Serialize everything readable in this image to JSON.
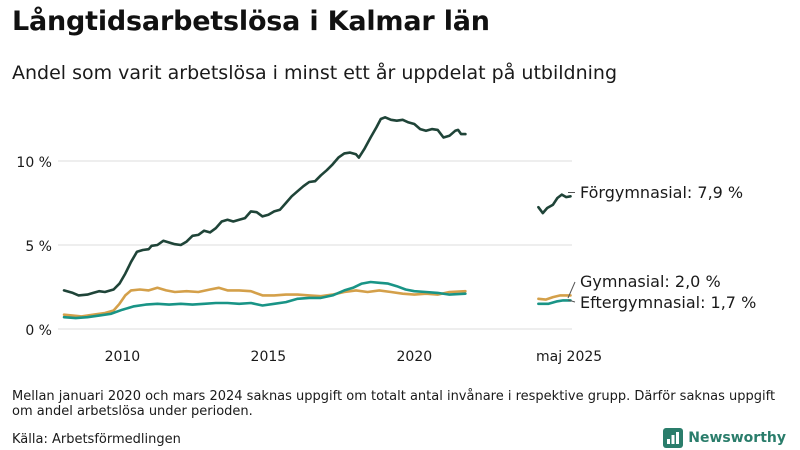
{
  "title": "Långtidsarbetslösa i Kalmar län",
  "subtitle": "Andel som varit arbetslösa i minst ett år uppdelat på utbildning",
  "note": "Mellan januari 2020 och mars 2024 saknas uppgift om totalt antal invånare i respektive grupp. Därför saknas uppgift om andel arbetslösa under perioden.",
  "source": "Källa: Arbetsförmedlingen",
  "brand": "Newsworthy",
  "colors": {
    "forgymnasial": "#1f4438",
    "gymnasial": "#d4a04a",
    "eftergymnasial": "#199486",
    "grid": "#dcdcdc",
    "text": "#1a1a1a"
  },
  "chart_data": {
    "type": "line",
    "ylabel": "",
    "ylim": [
      0,
      13
    ],
    "yticks": [
      {
        "value": 0,
        "label": "0 %"
      },
      {
        "value": 5,
        "label": "5 %"
      },
      {
        "value": 10,
        "label": "10 %"
      }
    ],
    "xticks": [
      {
        "value": 2010,
        "label": "2010"
      },
      {
        "value": 2015,
        "label": "2015"
      },
      {
        "value": 2020,
        "label": "2020"
      },
      {
        "value": 2025.3,
        "label": "maj 2025"
      }
    ],
    "series": [
      {
        "name": "Förgymnasial",
        "label": "Förgymnasial: 7,9 %",
        "color_key": "forgymnasial",
        "segments": [
          [
            [
              2008.0,
              2.3
            ],
            [
              2008.3,
              2.15
            ],
            [
              2008.5,
              2.0
            ],
            [
              2008.8,
              2.05
            ],
            [
              2009.0,
              2.15
            ],
            [
              2009.2,
              2.25
            ],
            [
              2009.4,
              2.2
            ],
            [
              2009.7,
              2.35
            ],
            [
              2009.9,
              2.7
            ],
            [
              2010.1,
              3.3
            ],
            [
              2010.3,
              4.0
            ],
            [
              2010.5,
              4.6
            ],
            [
              2010.7,
              4.7
            ],
            [
              2010.9,
              4.75
            ],
            [
              2011.0,
              4.95
            ],
            [
              2011.2,
              5.0
            ],
            [
              2011.4,
              5.25
            ],
            [
              2011.6,
              5.15
            ],
            [
              2011.8,
              5.05
            ],
            [
              2012.0,
              5.0
            ],
            [
              2012.2,
              5.2
            ],
            [
              2012.4,
              5.55
            ],
            [
              2012.6,
              5.6
            ],
            [
              2012.8,
              5.85
            ],
            [
              2013.0,
              5.75
            ],
            [
              2013.2,
              6.0
            ],
            [
              2013.4,
              6.4
            ],
            [
              2013.6,
              6.5
            ],
            [
              2013.8,
              6.4
            ],
            [
              2014.0,
              6.5
            ],
            [
              2014.2,
              6.6
            ],
            [
              2014.4,
              7.0
            ],
            [
              2014.6,
              6.95
            ],
            [
              2014.8,
              6.7
            ],
            [
              2015.0,
              6.8
            ],
            [
              2015.2,
              7.0
            ],
            [
              2015.4,
              7.1
            ],
            [
              2015.6,
              7.5
            ],
            [
              2015.8,
              7.9
            ],
            [
              2016.0,
              8.2
            ],
            [
              2016.2,
              8.5
            ],
            [
              2016.4,
              8.75
            ],
            [
              2016.6,
              8.8
            ],
            [
              2016.8,
              9.15
            ],
            [
              2017.0,
              9.45
            ],
            [
              2017.2,
              9.8
            ],
            [
              2017.4,
              10.2
            ],
            [
              2017.6,
              10.45
            ],
            [
              2017.8,
              10.5
            ],
            [
              2018.0,
              10.4
            ],
            [
              2018.1,
              10.2
            ],
            [
              2018.3,
              10.75
            ],
            [
              2018.5,
              11.4
            ],
            [
              2018.7,
              12.0
            ],
            [
              2018.85,
              12.5
            ],
            [
              2019.0,
              12.6
            ],
            [
              2019.2,
              12.45
            ],
            [
              2019.4,
              12.4
            ],
            [
              2019.6,
              12.45
            ],
            [
              2019.8,
              12.3
            ],
            [
              2020.0,
              12.2
            ],
            [
              2020.2,
              11.9
            ],
            [
              2020.4,
              11.8
            ],
            [
              2020.6,
              11.9
            ],
            [
              2020.8,
              11.85
            ],
            [
              2021.0,
              11.4
            ],
            [
              2021.2,
              11.5
            ],
            [
              2021.4,
              11.8
            ],
            [
              2021.5,
              11.85
            ],
            [
              2021.6,
              11.6
            ],
            [
              2021.75,
              11.6
            ]
          ],
          [
            [
              2024.25,
              7.25
            ],
            [
              2024.4,
              6.9
            ],
            [
              2024.55,
              7.2
            ],
            [
              2024.75,
              7.4
            ],
            [
              2024.9,
              7.8
            ],
            [
              2025.05,
              8.0
            ],
            [
              2025.2,
              7.85
            ],
            [
              2025.35,
              7.9
            ]
          ]
        ]
      },
      {
        "name": "Gymnasial",
        "label": "Gymnasial: 2,0 %",
        "color_key": "gymnasial",
        "segments": [
          [
            [
              2008.0,
              0.85
            ],
            [
              2008.3,
              0.8
            ],
            [
              2008.6,
              0.75
            ],
            [
              2009.0,
              0.85
            ],
            [
              2009.4,
              0.95
            ],
            [
              2009.7,
              1.1
            ],
            [
              2009.9,
              1.5
            ],
            [
              2010.1,
              2.0
            ],
            [
              2010.3,
              2.3
            ],
            [
              2010.6,
              2.35
            ],
            [
              2010.9,
              2.3
            ],
            [
              2011.2,
              2.45
            ],
            [
              2011.5,
              2.3
            ],
            [
              2011.8,
              2.2
            ],
            [
              2012.2,
              2.25
            ],
            [
              2012.6,
              2.2
            ],
            [
              2013.0,
              2.35
            ],
            [
              2013.3,
              2.45
            ],
            [
              2013.6,
              2.3
            ],
            [
              2014.0,
              2.3
            ],
            [
              2014.4,
              2.25
            ],
            [
              2014.8,
              2.0
            ],
            [
              2015.2,
              2.0
            ],
            [
              2015.6,
              2.05
            ],
            [
              2016.0,
              2.05
            ],
            [
              2016.4,
              2.0
            ],
            [
              2016.8,
              1.95
            ],
            [
              2017.2,
              2.05
            ],
            [
              2017.6,
              2.2
            ],
            [
              2018.0,
              2.3
            ],
            [
              2018.4,
              2.2
            ],
            [
              2018.8,
              2.3
            ],
            [
              2019.2,
              2.2
            ],
            [
              2019.6,
              2.1
            ],
            [
              2020.0,
              2.05
            ],
            [
              2020.4,
              2.1
            ],
            [
              2020.8,
              2.05
            ],
            [
              2021.2,
              2.2
            ],
            [
              2021.75,
              2.25
            ]
          ],
          [
            [
              2024.25,
              1.8
            ],
            [
              2024.5,
              1.75
            ],
            [
              2024.75,
              1.9
            ],
            [
              2025.0,
              2.0
            ],
            [
              2025.35,
              2.0
            ]
          ]
        ]
      },
      {
        "name": "Eftergymnasial",
        "label": "Eftergymnasial: 1,7 %",
        "color_key": "eftergymnasial",
        "segments": [
          [
            [
              2008.0,
              0.7
            ],
            [
              2008.4,
              0.65
            ],
            [
              2008.8,
              0.7
            ],
            [
              2009.2,
              0.8
            ],
            [
              2009.6,
              0.9
            ],
            [
              2010.0,
              1.15
            ],
            [
              2010.4,
              1.35
            ],
            [
              2010.8,
              1.45
            ],
            [
              2011.2,
              1.5
            ],
            [
              2011.6,
              1.45
            ],
            [
              2012.0,
              1.5
            ],
            [
              2012.4,
              1.45
            ],
            [
              2012.8,
              1.5
            ],
            [
              2013.2,
              1.55
            ],
            [
              2013.6,
              1.55
            ],
            [
              2014.0,
              1.5
            ],
            [
              2014.4,
              1.55
            ],
            [
              2014.8,
              1.4
            ],
            [
              2015.2,
              1.5
            ],
            [
              2015.6,
              1.6
            ],
            [
              2016.0,
              1.8
            ],
            [
              2016.4,
              1.85
            ],
            [
              2016.8,
              1.85
            ],
            [
              2017.2,
              2.0
            ],
            [
              2017.6,
              2.3
            ],
            [
              2017.9,
              2.45
            ],
            [
              2018.2,
              2.7
            ],
            [
              2018.5,
              2.8
            ],
            [
              2018.8,
              2.75
            ],
            [
              2019.1,
              2.7
            ],
            [
              2019.4,
              2.55
            ],
            [
              2019.7,
              2.35
            ],
            [
              2020.0,
              2.25
            ],
            [
              2020.4,
              2.2
            ],
            [
              2020.8,
              2.15
            ],
            [
              2021.2,
              2.05
            ],
            [
              2021.75,
              2.1
            ]
          ],
          [
            [
              2024.25,
              1.5
            ],
            [
              2024.6,
              1.5
            ],
            [
              2024.9,
              1.65
            ],
            [
              2025.1,
              1.7
            ],
            [
              2025.35,
              1.7
            ]
          ]
        ]
      }
    ]
  }
}
